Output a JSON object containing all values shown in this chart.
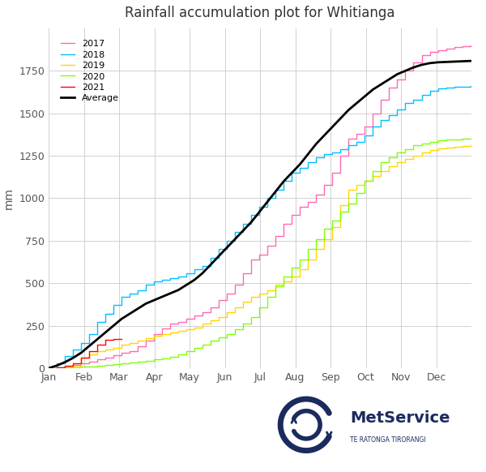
{
  "title": "Rainfall accumulation plot for Whitianga",
  "ylabel": "mm",
  "month_labels": [
    "Jan",
    "Feb",
    "Mar",
    "Apr",
    "May",
    "Jun",
    "Jul",
    "Aug",
    "Sep",
    "Oct",
    "Nov",
    "Dec"
  ],
  "colors": {
    "2017": "#FF69B4",
    "2018": "#00BFFF",
    "2019": "#FFD700",
    "2020": "#7FFF00",
    "2021": "#FF0000",
    "Average": "#000000"
  },
  "ylim": [
    0,
    2000
  ],
  "yticks": [
    0,
    250,
    500,
    750,
    1000,
    1250,
    1500,
    1750
  ],
  "background_color": "#FFFFFF",
  "grid_color": "#CCCCCC",
  "series": {
    "2017": {
      "days": [
        0,
        7,
        14,
        21,
        28,
        35,
        42,
        49,
        56,
        63,
        70,
        77,
        84,
        91,
        98,
        105,
        112,
        119,
        126,
        133,
        140,
        147,
        154,
        161,
        168,
        175,
        182,
        189,
        196,
        203,
        210,
        217,
        224,
        231,
        238,
        245,
        252,
        259,
        266,
        273,
        280,
        287,
        294,
        301,
        308,
        315,
        322,
        329,
        336,
        343,
        350,
        357,
        364
      ],
      "values": [
        0,
        5,
        10,
        20,
        30,
        40,
        50,
        60,
        75,
        90,
        100,
        130,
        160,
        200,
        235,
        260,
        270,
        290,
        310,
        330,
        360,
        400,
        440,
        490,
        560,
        640,
        670,
        720,
        780,
        850,
        900,
        950,
        980,
        1020,
        1080,
        1150,
        1250,
        1350,
        1380,
        1420,
        1500,
        1580,
        1650,
        1700,
        1750,
        1800,
        1840,
        1860,
        1870,
        1880,
        1890,
        1895,
        1900
      ]
    },
    "2018": {
      "days": [
        0,
        7,
        14,
        21,
        28,
        35,
        42,
        49,
        56,
        63,
        70,
        77,
        84,
        91,
        98,
        105,
        112,
        119,
        126,
        133,
        140,
        147,
        154,
        161,
        168,
        175,
        182,
        189,
        196,
        203,
        210,
        217,
        224,
        231,
        238,
        245,
        252,
        259,
        266,
        273,
        280,
        287,
        294,
        301,
        308,
        315,
        322,
        329,
        336,
        343,
        350,
        357,
        364
      ],
      "values": [
        0,
        30,
        70,
        110,
        150,
        200,
        270,
        320,
        370,
        420,
        440,
        460,
        490,
        510,
        520,
        530,
        540,
        560,
        580,
        600,
        650,
        700,
        750,
        800,
        850,
        900,
        950,
        1000,
        1050,
        1100,
        1150,
        1180,
        1210,
        1240,
        1260,
        1270,
        1290,
        1310,
        1330,
        1370,
        1420,
        1460,
        1490,
        1520,
        1560,
        1580,
        1610,
        1630,
        1645,
        1650,
        1655,
        1658,
        1660
      ]
    },
    "2019": {
      "days": [
        0,
        7,
        14,
        21,
        28,
        35,
        42,
        49,
        56,
        63,
        70,
        77,
        84,
        91,
        98,
        105,
        112,
        119,
        126,
        133,
        140,
        147,
        154,
        161,
        168,
        175,
        182,
        189,
        196,
        203,
        210,
        217,
        224,
        231,
        238,
        245,
        252,
        259,
        266,
        273,
        280,
        287,
        294,
        301,
        308,
        315,
        322,
        329,
        336,
        343,
        350,
        357,
        364
      ],
      "values": [
        0,
        5,
        10,
        15,
        60,
        80,
        100,
        110,
        120,
        140,
        150,
        160,
        175,
        190,
        200,
        210,
        220,
        230,
        240,
        260,
        280,
        300,
        330,
        360,
        390,
        420,
        440,
        460,
        490,
        510,
        540,
        580,
        640,
        700,
        760,
        830,
        960,
        1050,
        1080,
        1100,
        1130,
        1160,
        1190,
        1210,
        1230,
        1250,
        1270,
        1285,
        1295,
        1300,
        1305,
        1308,
        1310
      ]
    },
    "2020": {
      "days": [
        0,
        7,
        14,
        21,
        28,
        35,
        42,
        49,
        56,
        63,
        70,
        77,
        84,
        91,
        98,
        105,
        112,
        119,
        126,
        133,
        140,
        147,
        154,
        161,
        168,
        175,
        182,
        189,
        196,
        203,
        210,
        217,
        224,
        231,
        238,
        245,
        252,
        259,
        266,
        273,
        280,
        287,
        294,
        301,
        308,
        315,
        322,
        329,
        336,
        343,
        350,
        357,
        364
      ],
      "values": [
        0,
        2,
        4,
        6,
        8,
        10,
        15,
        20,
        25,
        30,
        35,
        40,
        45,
        50,
        55,
        65,
        80,
        100,
        120,
        140,
        160,
        180,
        200,
        230,
        260,
        300,
        360,
        420,
        480,
        540,
        590,
        640,
        700,
        760,
        820,
        870,
        920,
        970,
        1030,
        1100,
        1160,
        1210,
        1240,
        1270,
        1290,
        1310,
        1320,
        1330,
        1340,
        1345,
        1348,
        1350,
        1352
      ]
    },
    "2021": {
      "days": [
        0,
        7,
        14,
        21,
        28,
        35,
        42,
        49,
        56,
        63
      ],
      "values": [
        0,
        5,
        15,
        30,
        60,
        100,
        140,
        165,
        170,
        172
      ]
    },
    "Average": {
      "days": [
        0,
        7,
        14,
        21,
        28,
        35,
        42,
        49,
        56,
        63,
        70,
        77,
        84,
        91,
        98,
        105,
        112,
        119,
        126,
        133,
        140,
        147,
        154,
        161,
        168,
        175,
        182,
        189,
        196,
        203,
        210,
        217,
        224,
        231,
        238,
        245,
        252,
        259,
        266,
        273,
        280,
        287,
        294,
        301,
        308,
        315,
        322,
        329,
        336,
        343,
        350,
        357,
        364
      ],
      "values": [
        0,
        15,
        35,
        60,
        90,
        130,
        170,
        210,
        250,
        290,
        320,
        350,
        380,
        400,
        420,
        440,
        460,
        490,
        520,
        560,
        610,
        660,
        710,
        760,
        810,
        860,
        920,
        980,
        1040,
        1100,
        1150,
        1200,
        1260,
        1320,
        1370,
        1420,
        1470,
        1520,
        1560,
        1600,
        1640,
        1670,
        1700,
        1730,
        1750,
        1770,
        1785,
        1795,
        1800,
        1802,
        1804,
        1806,
        1808
      ]
    }
  },
  "legend_order": [
    "2017",
    "2018",
    "2019",
    "2020",
    "2021",
    "Average"
  ],
  "logo_color": "#1a2b5e"
}
